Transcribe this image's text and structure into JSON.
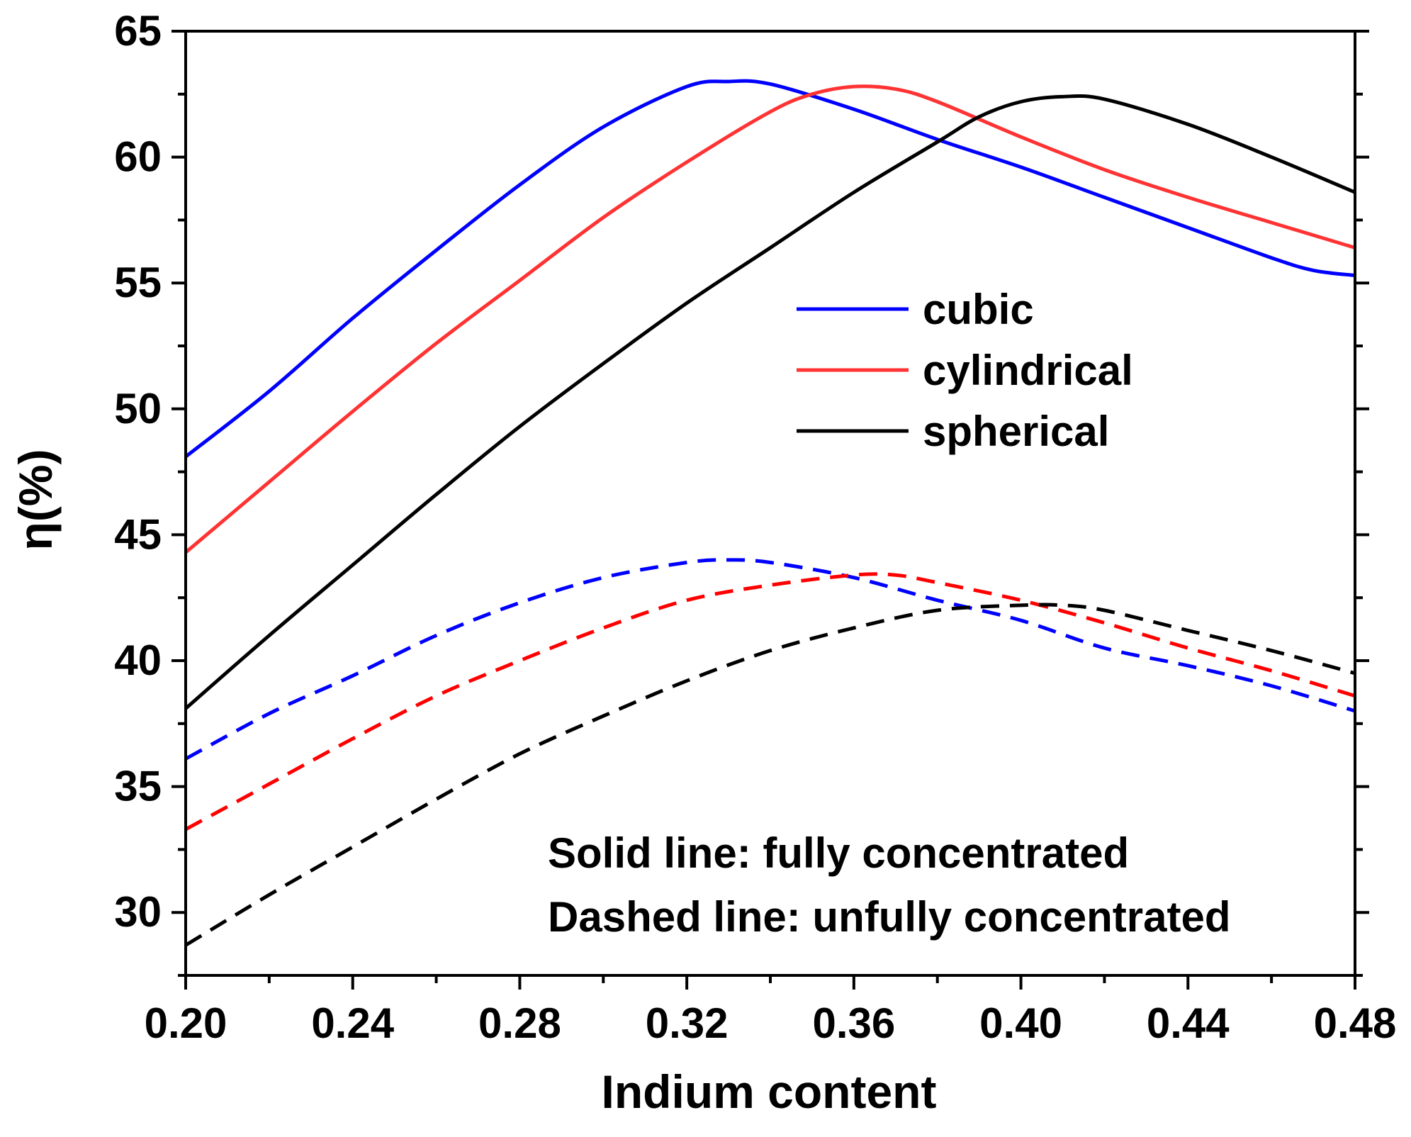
{
  "chart_data": {
    "type": "line",
    "xlabel": "Indium content",
    "ylabel": "η(%)",
    "xlim": [
      0.2,
      0.48
    ],
    "ylim": [
      27.5,
      65
    ],
    "x_ticks": [
      "0.20",
      "0.24",
      "0.28",
      "0.32",
      "0.36",
      "0.40",
      "0.44",
      "0.48"
    ],
    "x_tick_values": [
      0.2,
      0.24,
      0.28,
      0.32,
      0.36,
      0.4,
      0.44,
      0.48
    ],
    "y_ticks": [
      "30",
      "35",
      "40",
      "45",
      "50",
      "55",
      "60",
      "65"
    ],
    "y_tick_values": [
      30,
      35,
      40,
      45,
      50,
      55,
      60,
      65
    ],
    "legend_position": "center-right",
    "legend": [
      {
        "label": "cubic",
        "color": "#0000ff"
      },
      {
        "label": "cylindrical",
        "color": "#ff3333"
      },
      {
        "label": "spherical",
        "color": "#000000"
      }
    ],
    "annotations": [
      "Solid line: fully concentrated",
      "Dashed line: unfully concentrated"
    ],
    "series": [
      {
        "name": "cubic (fully concentrated)",
        "style": "solid",
        "color": "#0000ff",
        "x": [
          0.2,
          0.22,
          0.24,
          0.26,
          0.28,
          0.3,
          0.32,
          0.33,
          0.34,
          0.36,
          0.38,
          0.4,
          0.42,
          0.44,
          0.46,
          0.47,
          0.48
        ],
        "y": [
          48.1,
          50.7,
          53.6,
          56.3,
          58.9,
          61.2,
          62.8,
          63.0,
          62.9,
          61.9,
          60.7,
          59.6,
          58.4,
          57.2,
          56.0,
          55.5,
          55.3
        ]
      },
      {
        "name": "cylindrical (fully concentrated)",
        "style": "solid",
        "color": "#ff3333",
        "x": [
          0.2,
          0.22,
          0.24,
          0.26,
          0.28,
          0.3,
          0.32,
          0.34,
          0.35,
          0.36,
          0.37,
          0.38,
          0.4,
          0.42,
          0.44,
          0.46,
          0.48
        ],
        "y": [
          44.3,
          47.1,
          49.9,
          52.6,
          55.1,
          57.6,
          59.8,
          61.8,
          62.5,
          62.8,
          62.7,
          62.2,
          60.8,
          59.5,
          58.4,
          57.4,
          56.4
        ]
      },
      {
        "name": "spherical (fully concentrated)",
        "style": "solid",
        "color": "#000000",
        "x": [
          0.2,
          0.22,
          0.24,
          0.26,
          0.28,
          0.3,
          0.32,
          0.34,
          0.36,
          0.38,
          0.39,
          0.4,
          0.41,
          0.42,
          0.44,
          0.46,
          0.48
        ],
        "y": [
          38.1,
          41.0,
          43.8,
          46.6,
          49.3,
          51.8,
          54.2,
          56.4,
          58.6,
          60.6,
          61.6,
          62.2,
          62.4,
          62.3,
          61.3,
          60.0,
          58.6
        ]
      },
      {
        "name": "cubic (unfully concentrated)",
        "style": "dashed",
        "color": "#0000ff",
        "x": [
          0.2,
          0.22,
          0.24,
          0.26,
          0.28,
          0.3,
          0.32,
          0.33,
          0.34,
          0.36,
          0.38,
          0.4,
          0.42,
          0.44,
          0.46,
          0.48
        ],
        "y": [
          36.1,
          37.9,
          39.4,
          41.0,
          42.3,
          43.3,
          43.9,
          44.0,
          43.9,
          43.3,
          42.4,
          41.6,
          40.5,
          39.8,
          39.0,
          38.0
        ]
      },
      {
        "name": "cylindrical (unfully concentrated)",
        "style": "dashed",
        "color": "#ff0000",
        "x": [
          0.2,
          0.22,
          0.24,
          0.26,
          0.28,
          0.3,
          0.32,
          0.34,
          0.36,
          0.37,
          0.38,
          0.4,
          0.42,
          0.44,
          0.46,
          0.48
        ],
        "y": [
          33.3,
          35.1,
          36.9,
          38.6,
          40.0,
          41.3,
          42.4,
          43.0,
          43.4,
          43.4,
          43.1,
          42.4,
          41.5,
          40.5,
          39.6,
          38.6
        ]
      },
      {
        "name": "spherical (unfully concentrated)",
        "style": "dashed",
        "color": "#000000",
        "x": [
          0.2,
          0.22,
          0.24,
          0.26,
          0.28,
          0.3,
          0.32,
          0.34,
          0.36,
          0.38,
          0.4,
          0.41,
          0.42,
          0.44,
          0.46,
          0.48
        ],
        "y": [
          28.7,
          30.7,
          32.6,
          34.5,
          36.3,
          37.8,
          39.2,
          40.4,
          41.3,
          42.0,
          42.2,
          42.2,
          42.0,
          41.2,
          40.4,
          39.5
        ]
      }
    ]
  }
}
